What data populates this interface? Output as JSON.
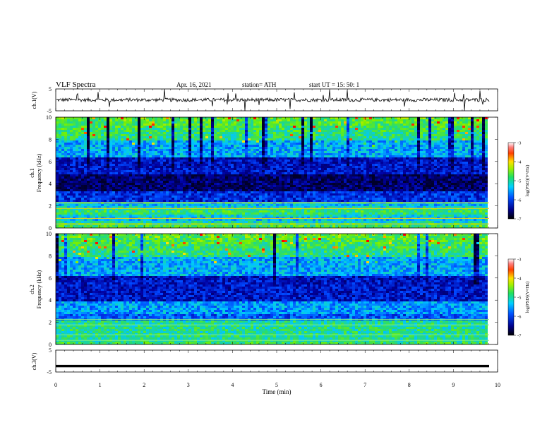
{
  "header": {
    "title": "VLF  Spectra",
    "date": "Apr. 16, 2021",
    "station": "station= ATH",
    "start": "start  UT  =    15: 50: 1"
  },
  "chart_data": [
    {
      "type": "line",
      "ylabel": "ch.1(V)",
      "yticks": [
        "5",
        "-5"
      ],
      "ylim": [
        -5,
        5
      ],
      "xlim": [
        0,
        10
      ],
      "description_values": "noisy voltage trace near 0 V with sporadic spikes"
    },
    {
      "type": "heatmap",
      "ylabel": "ch.1\nFrequency (kHz)",
      "ylabel_line1": "ch.1",
      "ylabel_line2": "Frequency  (kHz)",
      "yticks": [
        "0",
        "2",
        "4",
        "6",
        "8",
        "10"
      ],
      "ylim": [
        0,
        10
      ],
      "xlim": [
        0,
        10
      ],
      "colorbar": {
        "label": "log(PSD)(V²/Hz)",
        "ticks": [
          "-3",
          "-4",
          "-5",
          "-6",
          "-7"
        ],
        "range": [
          -7,
          -3
        ]
      }
    },
    {
      "type": "heatmap",
      "ylabel_line1": "ch.2",
      "ylabel_line2": "Frequency  (kHz)",
      "yticks": [
        "0",
        "2",
        "4",
        "6",
        "8",
        "10"
      ],
      "ylim": [
        0,
        10
      ],
      "xlim": [
        0,
        10
      ],
      "colorbar": {
        "label": "log(PSD)(V²/Hz)",
        "ticks": [
          "-3",
          "-4",
          "-5",
          "-6",
          "-7"
        ],
        "range": [
          -7,
          -3
        ]
      }
    },
    {
      "type": "line",
      "ylabel": "ch.3(V)",
      "yticks": [
        "5",
        "-5"
      ],
      "ylim": [
        -5,
        5
      ],
      "xlim": [
        0,
        10
      ],
      "level": -2.3,
      "xticks": [
        "0",
        "1",
        "2",
        "3",
        "4",
        "5",
        "6",
        "7",
        "8",
        "9",
        "10"
      ],
      "xlabel": "Time  (min)"
    }
  ],
  "colors": {
    "colormap": [
      "#00003a",
      "#0000b4",
      "#0050ff",
      "#00c8ff",
      "#40e0a0",
      "#20e020",
      "#ffff00",
      "#ff8000",
      "#ff0000",
      "#ffffff"
    ]
  }
}
